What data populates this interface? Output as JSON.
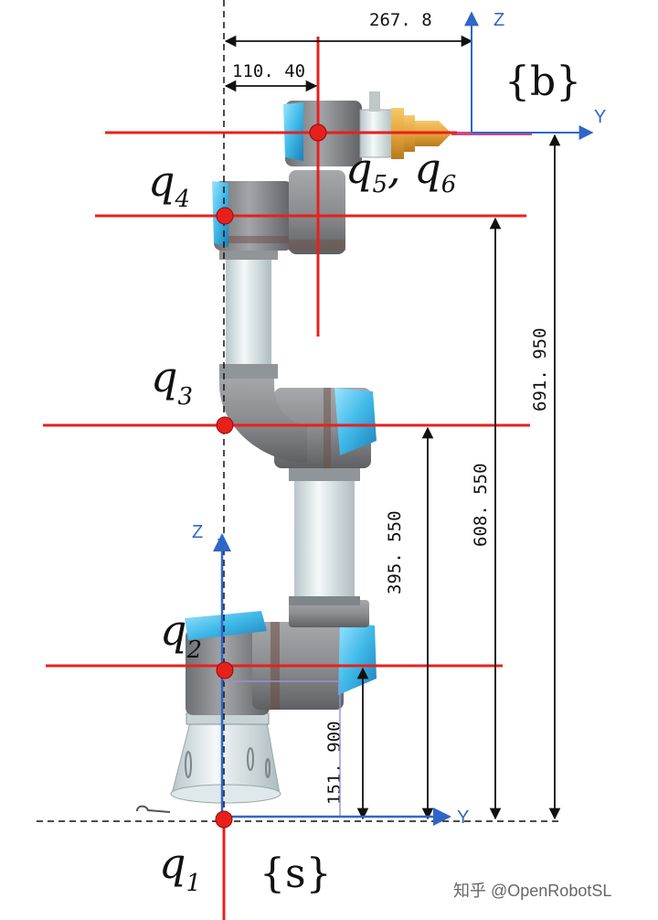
{
  "dimensions": {
    "d_267": "267. 8",
    "d_110": "110. 40",
    "d_691": "691. 950",
    "d_608": "608. 550",
    "d_395": "395. 550",
    "d_151": "151. 900"
  },
  "joints": {
    "q1": {
      "base": "q",
      "sub": "1"
    },
    "q2": {
      "base": "q",
      "sub": "2"
    },
    "q3": {
      "base": "q",
      "sub": "3"
    },
    "q4": {
      "base": "q",
      "sub": "4"
    },
    "q56": {
      "base1": "q",
      "sub1": "5",
      "sep": ", ",
      "base2": "q",
      "sub2": "6"
    }
  },
  "frames": {
    "base": "{s}",
    "tool": "{b}"
  },
  "axes": {
    "base_z": "Z",
    "base_z_small": "Z",
    "base_y": "Y",
    "tool_z": "Z",
    "tool_y": "Y"
  },
  "watermark": "知乎 @OpenRobotSL",
  "colors": {
    "red_line": "#e8201c",
    "joint_dot": "#e8201c",
    "axis_blue": "#2f66c8",
    "link_gray": "#8a8c8f",
    "tube_white": "#dfe8ea",
    "cap_blue": "#3fb9e8",
    "tool_gold": "#e6a33a"
  }
}
